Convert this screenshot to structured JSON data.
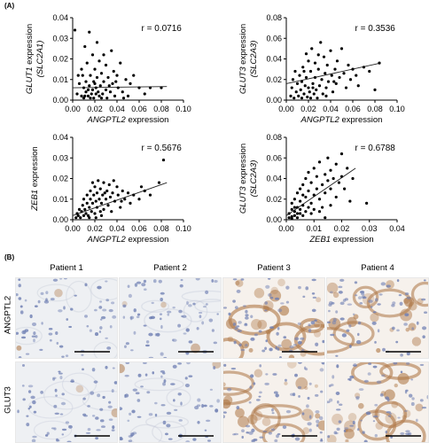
{
  "figure": {
    "panel_a_label": "(A)",
    "panel_b_label": "(B)"
  },
  "chart_data": [
    {
      "type": "scatter",
      "id": "p1",
      "r_text": "r = 0.0716",
      "xlabel_italic": "ANGPTL2",
      "xlabel_suffix": " expression",
      "ylabel_line1_italic": "GLUT1",
      "ylabel_line1_suffix": " expression",
      "ylabel_line2": "(SLC2A1)",
      "xlim": [
        0,
        0.1
      ],
      "ylim": [
        0,
        0.04
      ],
      "xticks": [
        "0.00",
        "0.02",
        "0.04",
        "0.06",
        "0.08",
        "0.10"
      ],
      "yticks": [
        "0.00",
        "0.01",
        "0.02",
        "0.03",
        "0.04"
      ],
      "fit": [
        [
          0.0,
          0.006
        ],
        [
          0.085,
          0.0066
        ]
      ],
      "points": [
        [
          0.002,
          0.034
        ],
        [
          0.005,
          0.012
        ],
        [
          0.004,
          0.003
        ],
        [
          0.006,
          0.008
        ],
        [
          0.008,
          0.015
        ],
        [
          0.008,
          0.002
        ],
        [
          0.01,
          0.001
        ],
        [
          0.01,
          0.006
        ],
        [
          0.011,
          0.026
        ],
        [
          0.012,
          0.004
        ],
        [
          0.012,
          0.009
        ],
        [
          0.013,
          0.018
        ],
        [
          0.014,
          0.002
        ],
        [
          0.015,
          0.033
        ],
        [
          0.015,
          0.007
        ],
        [
          0.016,
          0.012
        ],
        [
          0.017,
          0.003
        ],
        [
          0.018,
          0.022
        ],
        [
          0.018,
          0.005
        ],
        [
          0.019,
          0.001
        ],
        [
          0.02,
          0.015
        ],
        [
          0.02,
          0.008
        ],
        [
          0.021,
          0.003
        ],
        [
          0.022,
          0.028
        ],
        [
          0.022,
          0.011
        ],
        [
          0.023,
          0.004
        ],
        [
          0.024,
          0.019
        ],
        [
          0.024,
          0.002
        ],
        [
          0.025,
          0.007
        ],
        [
          0.026,
          0.013
        ],
        [
          0.027,
          0.003
        ],
        [
          0.028,
          0.022
        ],
        [
          0.028,
          0.009
        ],
        [
          0.03,
          0.005
        ],
        [
          0.03,
          0.017
        ],
        [
          0.031,
          0.001
        ],
        [
          0.032,
          0.011
        ],
        [
          0.034,
          0.004
        ],
        [
          0.035,
          0.024
        ],
        [
          0.036,
          0.008
        ],
        [
          0.037,
          0.014
        ],
        [
          0.038,
          0.002
        ],
        [
          0.04,
          0.012
        ],
        [
          0.041,
          0.006
        ],
        [
          0.043,
          0.018
        ],
        [
          0.045,
          0.004
        ],
        [
          0.048,
          0.01
        ],
        [
          0.05,
          0.002
        ],
        [
          0.052,
          0.008
        ],
        [
          0.055,
          0.012
        ],
        [
          0.06,
          0.006
        ],
        [
          0.065,
          0.003
        ],
        [
          0.07,
          0.006
        ],
        [
          0.08,
          0.006
        ],
        [
          0.009,
          0.012
        ],
        [
          0.014,
          0.005
        ],
        [
          0.019,
          0.009
        ],
        [
          0.026,
          0.001
        ],
        [
          0.033,
          0.007
        ],
        [
          0.039,
          0.009
        ],
        [
          0.046,
          0.001
        ],
        [
          0.011,
          0.002
        ],
        [
          0.016,
          0.001
        ],
        [
          0.021,
          0.006
        ]
      ]
    },
    {
      "type": "scatter",
      "id": "p2",
      "r_text": "r = 0.3536",
      "xlabel_italic": "ANGPTL2",
      "xlabel_suffix": " expression",
      "ylabel_line1_italic": "GLUT3",
      "ylabel_line1_suffix": " expression",
      "ylabel_line2": "(SLC2A3)",
      "xlim": [
        0,
        0.1
      ],
      "ylim": [
        0,
        0.08
      ],
      "xticks": [
        "0.00",
        "0.02",
        "0.04",
        "0.06",
        "0.08",
        "0.10"
      ],
      "yticks": [
        "0.00",
        "0.02",
        "0.04",
        "0.06",
        "0.08"
      ],
      "fit": [
        [
          0.0,
          0.016
        ],
        [
          0.085,
          0.036
        ]
      ],
      "points": [
        [
          0.004,
          0.004
        ],
        [
          0.005,
          0.012
        ],
        [
          0.006,
          0.02
        ],
        [
          0.007,
          0.002
        ],
        [
          0.008,
          0.028
        ],
        [
          0.009,
          0.008
        ],
        [
          0.01,
          0.016
        ],
        [
          0.011,
          0.004
        ],
        [
          0.012,
          0.024
        ],
        [
          0.013,
          0.01
        ],
        [
          0.014,
          0.018
        ],
        [
          0.014,
          0.002
        ],
        [
          0.015,
          0.032
        ],
        [
          0.016,
          0.006
        ],
        [
          0.017,
          0.014
        ],
        [
          0.018,
          0.045
        ],
        [
          0.018,
          0.022
        ],
        [
          0.019,
          0.003
        ],
        [
          0.02,
          0.038
        ],
        [
          0.02,
          0.012
        ],
        [
          0.021,
          0.008
        ],
        [
          0.022,
          0.028
        ],
        [
          0.022,
          0.002
        ],
        [
          0.023,
          0.05
        ],
        [
          0.024,
          0.016
        ],
        [
          0.025,
          0.006
        ],
        [
          0.026,
          0.036
        ],
        [
          0.026,
          0.022
        ],
        [
          0.027,
          0.01
        ],
        [
          0.028,
          0.002
        ],
        [
          0.029,
          0.03
        ],
        [
          0.03,
          0.014
        ],
        [
          0.031,
          0.056
        ],
        [
          0.032,
          0.02
        ],
        [
          0.033,
          0.006
        ],
        [
          0.034,
          0.042
        ],
        [
          0.035,
          0.026
        ],
        [
          0.036,
          0.012
        ],
        [
          0.037,
          0.034
        ],
        [
          0.038,
          0.018
        ],
        [
          0.04,
          0.048
        ],
        [
          0.041,
          0.024
        ],
        [
          0.042,
          0.008
        ],
        [
          0.044,
          0.03
        ],
        [
          0.045,
          0.016
        ],
        [
          0.046,
          0.038
        ],
        [
          0.048,
          0.022
        ],
        [
          0.05,
          0.05
        ],
        [
          0.052,
          0.026
        ],
        [
          0.054,
          0.012
        ],
        [
          0.056,
          0.034
        ],
        [
          0.058,
          0.02
        ],
        [
          0.06,
          0.03
        ],
        [
          0.063,
          0.024
        ],
        [
          0.065,
          0.014
        ],
        [
          0.07,
          0.032
        ],
        [
          0.075,
          0.028
        ],
        [
          0.08,
          0.01
        ],
        [
          0.084,
          0.036
        ],
        [
          0.016,
          0.028
        ],
        [
          0.024,
          0.012
        ],
        [
          0.029,
          0.044
        ],
        [
          0.036,
          0.004
        ],
        [
          0.043,
          0.018
        ]
      ]
    },
    {
      "type": "scatter",
      "id": "p3",
      "r_text": "r = 0.5676",
      "xlabel_italic": "ANGPTL2",
      "xlabel_suffix": " expression",
      "ylabel_line1_italic": "ZEB1",
      "ylabel_line1_suffix": " expression",
      "ylabel_line2": "",
      "xlim": [
        0,
        0.1
      ],
      "ylim": [
        0,
        0.04
      ],
      "xticks": [
        "0.00",
        "0.02",
        "0.04",
        "0.06",
        "0.08",
        "0.10"
      ],
      "yticks": [
        "0.00",
        "0.01",
        "0.02",
        "0.03",
        "0.04"
      ],
      "fit": [
        [
          0.0,
          0.002
        ],
        [
          0.085,
          0.018
        ]
      ],
      "points": [
        [
          0.003,
          0.001
        ],
        [
          0.004,
          0.003
        ],
        [
          0.005,
          0.002
        ],
        [
          0.006,
          0.005
        ],
        [
          0.007,
          0.001
        ],
        [
          0.008,
          0.004
        ],
        [
          0.009,
          0.007
        ],
        [
          0.01,
          0.002
        ],
        [
          0.01,
          0.01
        ],
        [
          0.011,
          0.005
        ],
        [
          0.012,
          0.003
        ],
        [
          0.013,
          0.008
        ],
        [
          0.013,
          0.012
        ],
        [
          0.014,
          0.002
        ],
        [
          0.015,
          0.006
        ],
        [
          0.016,
          0.01
        ],
        [
          0.016,
          0.014
        ],
        [
          0.017,
          0.004
        ],
        [
          0.018,
          0.008
        ],
        [
          0.018,
          0.018
        ],
        [
          0.019,
          0.012
        ],
        [
          0.02,
          0.003
        ],
        [
          0.02,
          0.016
        ],
        [
          0.021,
          0.009
        ],
        [
          0.022,
          0.006
        ],
        [
          0.022,
          0.013
        ],
        [
          0.023,
          0.019
        ],
        [
          0.024,
          0.01
        ],
        [
          0.025,
          0.004
        ],
        [
          0.025,
          0.015
        ],
        [
          0.026,
          0.008
        ],
        [
          0.027,
          0.012
        ],
        [
          0.028,
          0.018
        ],
        [
          0.028,
          0.005
        ],
        [
          0.03,
          0.01
        ],
        [
          0.031,
          0.014
        ],
        [
          0.032,
          0.007
        ],
        [
          0.033,
          0.017
        ],
        [
          0.034,
          0.011
        ],
        [
          0.035,
          0.004
        ],
        [
          0.036,
          0.013
        ],
        [
          0.038,
          0.009
        ],
        [
          0.04,
          0.016
        ],
        [
          0.041,
          0.012
        ],
        [
          0.043,
          0.006
        ],
        [
          0.045,
          0.014
        ],
        [
          0.047,
          0.01
        ],
        [
          0.05,
          0.013
        ],
        [
          0.052,
          0.008
        ],
        [
          0.055,
          0.012
        ],
        [
          0.06,
          0.01
        ],
        [
          0.062,
          0.016
        ],
        [
          0.065,
          0.014
        ],
        [
          0.07,
          0.012
        ],
        [
          0.078,
          0.018
        ],
        [
          0.082,
          0.029
        ],
        [
          0.015,
          0.001
        ],
        [
          0.021,
          0.001
        ],
        [
          0.026,
          0.002
        ],
        [
          0.029,
          0.013
        ],
        [
          0.037,
          0.019
        ],
        [
          0.044,
          0.009
        ]
      ]
    },
    {
      "type": "scatter",
      "id": "p4",
      "r_text": "r = 0.6788",
      "xlabel_italic": "ZEB1",
      "xlabel_suffix": " expression",
      "ylabel_line1_italic": "GLUT3",
      "ylabel_line1_suffix": " expression",
      "ylabel_line2": "(SLC2A3)",
      "xlim": [
        0,
        0.04
      ],
      "ylim": [
        0,
        0.08
      ],
      "xticks": [
        "0.00",
        "0.01",
        "0.02",
        "0.03",
        "0.04"
      ],
      "yticks": [
        "0.00",
        "0.02",
        "0.04",
        "0.06",
        "0.08"
      ],
      "fit": [
        [
          0.0,
          0.004
        ],
        [
          0.025,
          0.05
        ]
      ],
      "points": [
        [
          0.001,
          0.002
        ],
        [
          0.001,
          0.006
        ],
        [
          0.002,
          0.003
        ],
        [
          0.002,
          0.01
        ],
        [
          0.002,
          0.016
        ],
        [
          0.003,
          0.004
        ],
        [
          0.003,
          0.008
        ],
        [
          0.003,
          0.02
        ],
        [
          0.004,
          0.002
        ],
        [
          0.004,
          0.012
        ],
        [
          0.004,
          0.026
        ],
        [
          0.005,
          0.006
        ],
        [
          0.005,
          0.018
        ],
        [
          0.005,
          0.03
        ],
        [
          0.006,
          0.004
        ],
        [
          0.006,
          0.014
        ],
        [
          0.006,
          0.034
        ],
        [
          0.007,
          0.008
        ],
        [
          0.007,
          0.022
        ],
        [
          0.007,
          0.04
        ],
        [
          0.008,
          0.012
        ],
        [
          0.008,
          0.028
        ],
        [
          0.008,
          0.046
        ],
        [
          0.009,
          0.016
        ],
        [
          0.009,
          0.036
        ],
        [
          0.01,
          0.024
        ],
        [
          0.01,
          0.05
        ],
        [
          0.01,
          0.01
        ],
        [
          0.011,
          0.03
        ],
        [
          0.011,
          0.042
        ],
        [
          0.012,
          0.02
        ],
        [
          0.012,
          0.056
        ],
        [
          0.013,
          0.034
        ],
        [
          0.013,
          0.012
        ],
        [
          0.014,
          0.044
        ],
        [
          0.014,
          0.026
        ],
        [
          0.015,
          0.038
        ],
        [
          0.015,
          0.06
        ],
        [
          0.016,
          0.03
        ],
        [
          0.016,
          0.048
        ],
        [
          0.017,
          0.04
        ],
        [
          0.018,
          0.054
        ],
        [
          0.018,
          0.022
        ],
        [
          0.019,
          0.036
        ],
        [
          0.02,
          0.064
        ],
        [
          0.02,
          0.042
        ],
        [
          0.021,
          0.03
        ],
        [
          0.022,
          0.05
        ],
        [
          0.023,
          0.018
        ],
        [
          0.024,
          0.04
        ],
        [
          0.029,
          0.016
        ],
        [
          0.003,
          0.012
        ],
        [
          0.004,
          0.006
        ],
        [
          0.006,
          0.024
        ],
        [
          0.009,
          0.006
        ],
        [
          0.012,
          0.008
        ],
        [
          0.014,
          0.002
        ],
        [
          0.016,
          0.014
        ],
        [
          0.002,
          0.001
        ],
        [
          0.005,
          0.01
        ]
      ]
    }
  ],
  "histology": {
    "patients": [
      "Patient 1",
      "Patient 2",
      "Patient 3",
      "Patient 4"
    ],
    "rows": [
      {
        "label": "ANGPTL2",
        "stain": [
          0.05,
          0.08,
          0.55,
          0.45
        ]
      },
      {
        "label": "GLUT3",
        "stain": [
          0.04,
          0.06,
          0.45,
          0.5
        ]
      }
    ],
    "colors": {
      "background": "#eef0f3",
      "nucleus": "#6f7fb3",
      "stain": "#b07a4a",
      "stroma": "#f6f1ec"
    }
  }
}
